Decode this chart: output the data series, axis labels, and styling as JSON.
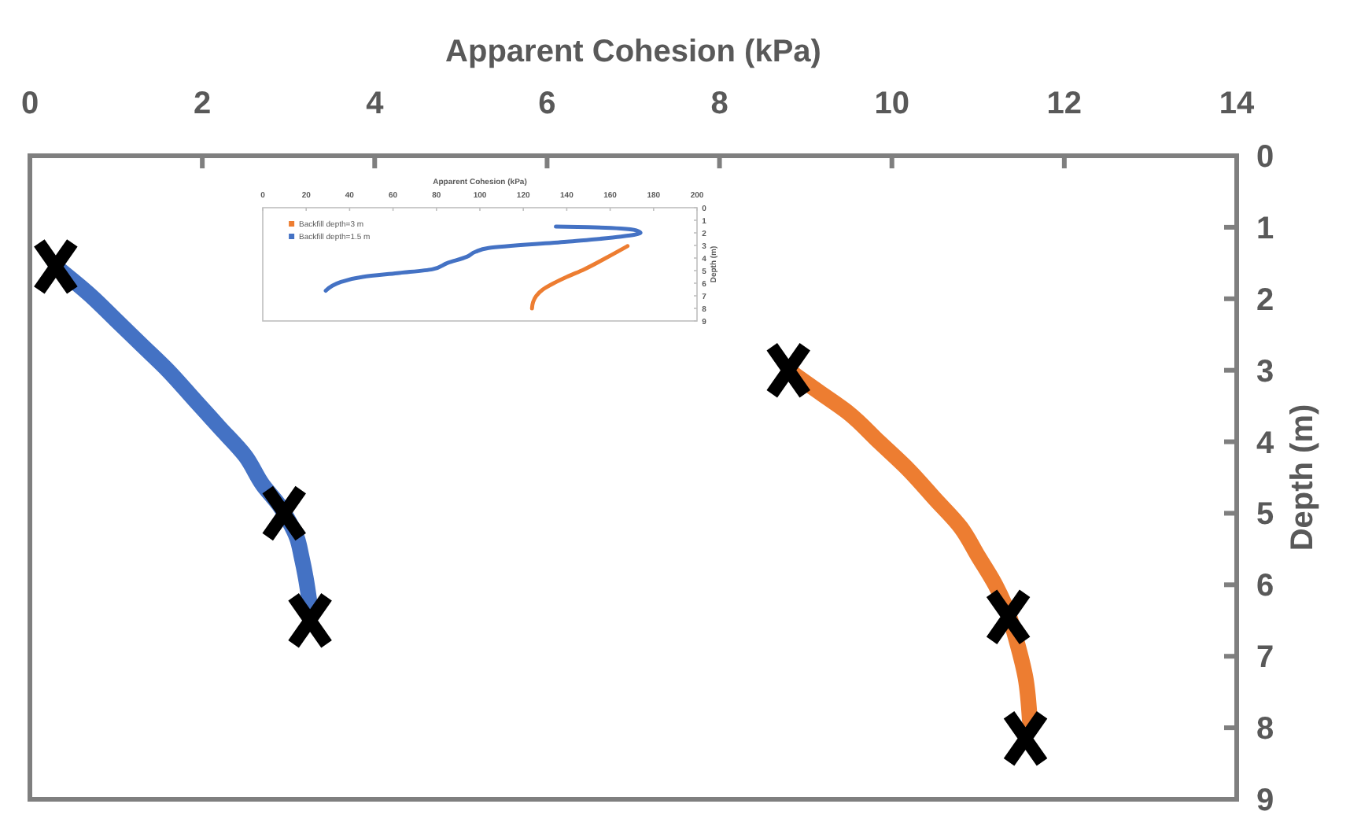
{
  "chart_data": [
    {
      "type": "line",
      "xlabel": "Apparent Cohesion (kPa)",
      "ylabel": "Depth (m)",
      "xlim": [
        0,
        14
      ],
      "xticks": [
        0,
        2,
        4,
        6,
        8,
        10,
        12,
        14
      ],
      "ylim": [
        9,
        0
      ],
      "yticks": [
        0,
        1,
        2,
        3,
        4,
        5,
        6,
        7,
        8,
        9
      ],
      "grid": false,
      "legend": false,
      "series": [
        {
          "color": "#4472c4",
          "marker": "none",
          "x": [
            0.3,
            0.7,
            1.0,
            1.3,
            1.6,
            1.9,
            2.2,
            2.5,
            2.7,
            2.9,
            3.0,
            3.1,
            3.15,
            3.2,
            3.25
          ],
          "values": [
            1.55,
            1.95,
            2.3,
            2.65,
            3.0,
            3.4,
            3.8,
            4.2,
            4.6,
            4.9,
            5.1,
            5.35,
            5.6,
            5.9,
            6.3
          ]
        },
        {
          "color": "#ed7d31",
          "marker": "none",
          "x": [
            8.8,
            9.15,
            9.5,
            9.85,
            10.2,
            10.5,
            10.8,
            11.0,
            11.2,
            11.35,
            11.45,
            11.55,
            11.6
          ],
          "values": [
            3.0,
            3.3,
            3.6,
            4.0,
            4.4,
            4.8,
            5.2,
            5.6,
            6.0,
            6.4,
            6.8,
            7.3,
            7.9
          ]
        },
        {
          "type": "scatter",
          "color": "#000000",
          "marker": "cross",
          "x": [
            0.3,
            2.95,
            3.25,
            8.8,
            11.35,
            11.55
          ],
          "values": [
            1.55,
            5.0,
            6.5,
            3.0,
            6.45,
            8.15
          ]
        }
      ]
    },
    {
      "type": "line",
      "xlabel": "Apparent Cohesion (kPa)",
      "ylabel": "Depth (m)",
      "xlim": [
        0,
        200
      ],
      "xticks": [
        0,
        20,
        40,
        60,
        80,
        100,
        120,
        140,
        160,
        180,
        200
      ],
      "ylim": [
        9,
        0
      ],
      "yticks": [
        0,
        1,
        2,
        3,
        4,
        5,
        6,
        7,
        8,
        9
      ],
      "grid": false,
      "legend": "top left",
      "series": [
        {
          "name": "Backfill depth=3 m",
          "color": "#ed7d31",
          "marker": "none",
          "x": [
            168,
            158,
            148,
            140,
            134,
            129,
            126,
            124.5,
            124
          ],
          "values": [
            3.05,
            4.0,
            4.9,
            5.5,
            6.0,
            6.5,
            7.0,
            7.5,
            8.0
          ]
        },
        {
          "name": "Backfill depth=1.5 m",
          "color": "#4472c4",
          "marker": "none",
          "x": [
            135,
            150,
            165,
            172,
            174,
            165,
            140,
            104,
            98,
            94,
            85,
            78,
            62,
            46,
            36,
            32,
            29
          ],
          "values": [
            1.5,
            1.55,
            1.65,
            1.8,
            2.0,
            2.3,
            2.7,
            3.2,
            3.5,
            3.9,
            4.4,
            4.9,
            5.2,
            5.5,
            5.9,
            6.2,
            6.6
          ]
        }
      ]
    }
  ]
}
